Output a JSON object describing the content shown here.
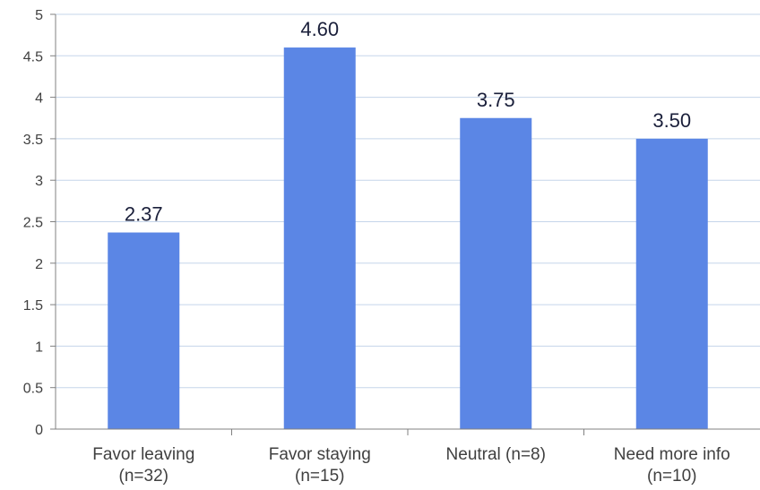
{
  "chart_data": {
    "type": "bar",
    "categories": [
      [
        "Favor leaving",
        "(n=32)"
      ],
      [
        "Favor staying",
        "(n=15)"
      ],
      [
        "Neutral (n=8)"
      ],
      [
        "Need more info",
        "(n=10)"
      ]
    ],
    "values": [
      2.37,
      4.6,
      3.75,
      3.5
    ],
    "data_labels": [
      "2.37",
      "4.60",
      "3.75",
      "3.50"
    ],
    "yticks": [
      "0",
      "0.5",
      "1",
      "1.5",
      "2",
      "2.5",
      "3",
      "3.5",
      "4",
      "4.5",
      "5"
    ],
    "ylim": [
      0,
      5
    ],
    "grid": true,
    "title": "",
    "xlabel": "",
    "ylabel": "",
    "colors": {
      "bar": "#5b86e5",
      "grid": "#c5d5ea",
      "axis": "#808080"
    }
  }
}
